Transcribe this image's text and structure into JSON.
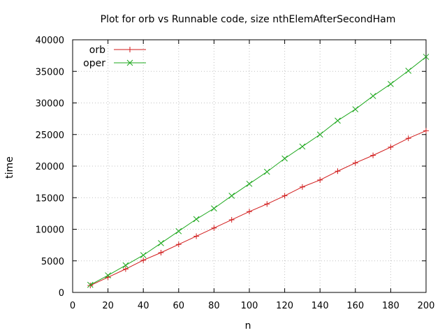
{
  "chart_data": {
    "type": "line",
    "title": "Plot for orb vs Runnable code, size nthElemAfterSecondHam",
    "xlabel": "n",
    "ylabel": "time",
    "xlim": [
      0,
      200
    ],
    "ylim": [
      0,
      40000
    ],
    "x_ticks": [
      "0",
      "20",
      "40",
      "60",
      "80",
      "100",
      "120",
      "140",
      "160",
      "180",
      "200"
    ],
    "y_ticks": [
      "0",
      "5000",
      "10000",
      "15000",
      "20000",
      "25000",
      "30000",
      "35000",
      "40000"
    ],
    "grid": true,
    "legend_position": "top-left",
    "x": [
      10,
      20,
      30,
      40,
      50,
      60,
      70,
      80,
      90,
      100,
      110,
      120,
      130,
      140,
      150,
      160,
      170,
      180,
      190,
      200
    ],
    "series": [
      {
        "name": "orb",
        "color": "#d11a1a",
        "marker": "plus",
        "values": [
          1100,
          2400,
          3700,
          5100,
          6300,
          7600,
          8900,
          10200,
          11500,
          12800,
          14000,
          15300,
          16700,
          17800,
          19200,
          20500,
          21700,
          23000,
          24400,
          25600
        ]
      },
      {
        "name": "oper",
        "color": "#1ea81e",
        "marker": "cross",
        "values": [
          1200,
          2700,
          4300,
          5900,
          7800,
          9700,
          11600,
          13300,
          15300,
          17200,
          19100,
          21200,
          23100,
          25000,
          27200,
          29000,
          31100,
          33000,
          35100,
          37300
        ]
      }
    ]
  }
}
